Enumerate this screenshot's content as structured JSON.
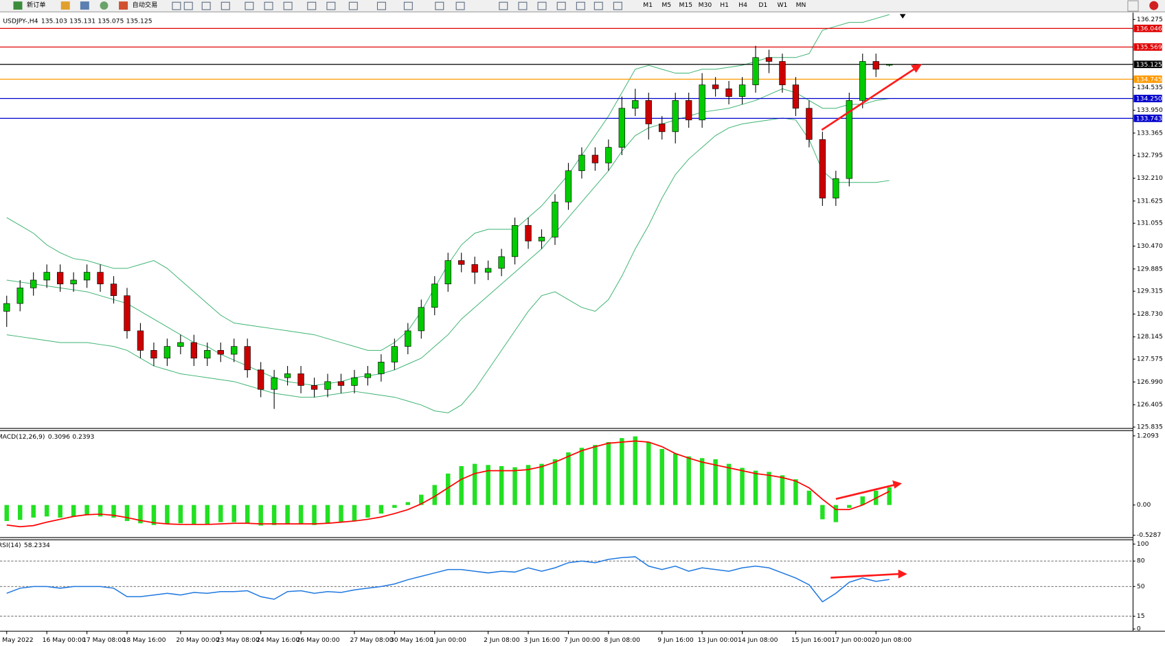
{
  "toolbar": {
    "new_order": "新订单",
    "auto_trading": "自动交易",
    "timeframes": [
      "M1",
      "M5",
      "M15",
      "M30",
      "H1",
      "H4",
      "D1",
      "W1",
      "MN"
    ]
  },
  "chart_data": [
    {
      "type": "candlestick",
      "symbol": "USDJPY-,H4",
      "categories": [
        "May 2022",
        null,
        null,
        "16 May 00:00",
        null,
        null,
        "17 May 08:00",
        null,
        null,
        "18 May 16:00",
        null,
        null,
        null,
        "20 May 00:00",
        null,
        null,
        "23 May 08:00",
        null,
        null,
        "24 May 16:00",
        null,
        null,
        "26 May 00:00",
        null,
        null,
        null,
        "27 May 08:00",
        null,
        null,
        "30 May 16:00",
        null,
        null,
        "1 Jun 00:00",
        null,
        null,
        null,
        "2 Jun 08:00",
        null,
        null,
        "3 Jun 16:00",
        null,
        null,
        "7 Jun 00:00",
        null,
        null,
        "8 Jun 08:00",
        null,
        null,
        null,
        "9 Jun 16:00",
        null,
        null,
        "13 Jun 00:00",
        null,
        null,
        "14 Jun 08:00",
        null,
        null,
        null,
        "15 Jun 16:00",
        null,
        null,
        "17 Jun 00:00",
        null,
        null,
        "20 Jun 08:00",
        null
      ],
      "open": [
        128.8,
        129.0,
        129.4,
        129.6,
        129.8,
        129.5,
        129.6,
        129.8,
        129.5,
        129.2,
        128.3,
        127.8,
        127.6,
        127.9,
        128.0,
        127.6,
        127.8,
        127.7,
        127.9,
        127.3,
        126.8,
        127.1,
        127.2,
        126.9,
        126.8,
        127.0,
        126.9,
        127.1,
        127.2,
        127.5,
        127.9,
        128.3,
        128.9,
        129.5,
        130.1,
        130.0,
        129.8,
        129.9,
        130.2,
        131.0,
        130.6,
        130.7,
        131.6,
        132.4,
        132.8,
        132.6,
        133.0,
        134.0,
        134.2,
        133.6,
        133.4,
        134.2,
        133.7,
        134.6,
        134.5,
        134.3,
        134.6,
        135.3,
        135.2,
        134.6,
        134.0,
        133.2,
        131.7,
        132.2,
        134.2,
        135.2,
        135.103
      ],
      "high": [
        129.2,
        129.6,
        129.8,
        130.0,
        130.0,
        129.8,
        130.0,
        130.0,
        129.7,
        129.4,
        128.5,
        128.0,
        128.1,
        128.2,
        128.2,
        128.0,
        128.0,
        128.1,
        128.1,
        127.5,
        127.3,
        127.4,
        127.4,
        127.1,
        127.2,
        127.2,
        127.3,
        127.4,
        127.7,
        128.1,
        128.5,
        129.1,
        129.7,
        130.3,
        130.3,
        130.2,
        130.1,
        130.4,
        131.2,
        131.2,
        130.9,
        131.8,
        132.6,
        133.0,
        133.0,
        133.2,
        134.3,
        134.5,
        134.4,
        133.8,
        134.4,
        134.4,
        134.9,
        134.8,
        134.7,
        134.8,
        135.6,
        135.5,
        135.4,
        134.8,
        134.2,
        133.4,
        132.4,
        134.4,
        135.4,
        135.4,
        135.131
      ],
      "low": [
        128.4,
        128.8,
        129.2,
        129.4,
        129.3,
        129.3,
        129.4,
        129.3,
        129.0,
        128.1,
        127.6,
        127.4,
        127.4,
        127.7,
        127.4,
        127.4,
        127.5,
        127.5,
        127.1,
        126.6,
        126.3,
        126.9,
        126.7,
        126.6,
        126.6,
        126.7,
        126.7,
        126.9,
        127.0,
        127.3,
        127.7,
        128.1,
        128.7,
        129.3,
        129.8,
        129.5,
        129.6,
        129.7,
        130.0,
        130.4,
        130.4,
        130.5,
        131.4,
        132.2,
        132.4,
        132.4,
        132.8,
        133.8,
        133.2,
        133.2,
        133.1,
        133.5,
        133.5,
        134.3,
        134.1,
        134.1,
        134.4,
        134.9,
        134.4,
        133.8,
        133.0,
        131.5,
        131.5,
        132.0,
        134.0,
        134.8,
        135.075
      ],
      "close": [
        129.0,
        129.4,
        129.6,
        129.8,
        129.5,
        129.6,
        129.8,
        129.5,
        129.2,
        128.3,
        127.8,
        127.6,
        127.9,
        128.0,
        127.6,
        127.8,
        127.7,
        127.9,
        127.3,
        126.8,
        127.1,
        127.2,
        126.9,
        126.8,
        127.0,
        126.9,
        127.1,
        127.2,
        127.5,
        127.9,
        128.3,
        128.9,
        129.5,
        130.1,
        130.0,
        129.8,
        129.9,
        130.2,
        131.0,
        130.6,
        130.7,
        131.6,
        132.4,
        132.8,
        132.6,
        133.0,
        134.0,
        134.2,
        133.6,
        133.4,
        134.2,
        133.7,
        134.6,
        134.5,
        134.3,
        134.6,
        135.3,
        135.2,
        134.6,
        134.0,
        133.2,
        131.7,
        132.2,
        134.2,
        135.2,
        135.0,
        135.125
      ],
      "up_color": "#00cc00",
      "down_color": "#cc0000",
      "bands": {
        "color": "#3cb371",
        "upper": [
          131.2,
          131.0,
          130.8,
          130.5,
          130.3,
          130.15,
          130.1,
          130.0,
          129.9,
          129.9,
          130.0,
          130.1,
          129.9,
          129.6,
          129.3,
          129.0,
          128.7,
          128.5,
          128.45,
          128.4,
          128.35,
          128.3,
          128.25,
          128.2,
          128.1,
          128.0,
          127.9,
          127.8,
          127.8,
          128.0,
          128.3,
          128.8,
          129.4,
          130.0,
          130.5,
          130.8,
          130.9,
          130.9,
          130.9,
          131.2,
          131.5,
          131.9,
          132.3,
          132.8,
          133.3,
          133.8,
          134.4,
          135.0,
          135.1,
          135.0,
          134.9,
          134.9,
          135.0,
          135.0,
          135.05,
          135.1,
          135.2,
          135.3,
          135.3,
          135.3,
          135.4,
          136.0,
          136.1,
          136.2,
          136.2,
          136.3,
          136.4
        ],
        "middle": [
          129.6,
          129.55,
          129.5,
          129.45,
          129.4,
          129.35,
          129.3,
          129.2,
          129.1,
          129.0,
          128.8,
          128.6,
          128.4,
          128.2,
          128.0,
          127.9,
          127.7,
          127.55,
          127.4,
          127.25,
          127.1,
          127.0,
          126.95,
          126.9,
          126.95,
          127.0,
          127.1,
          127.15,
          127.2,
          127.3,
          127.45,
          127.6,
          127.9,
          128.2,
          128.6,
          128.9,
          129.2,
          129.5,
          129.8,
          130.1,
          130.4,
          130.8,
          131.2,
          131.6,
          132.0,
          132.4,
          132.9,
          133.3,
          133.5,
          133.6,
          133.7,
          133.8,
          133.9,
          133.95,
          134.0,
          134.1,
          134.2,
          134.35,
          134.5,
          134.4,
          134.2,
          134.0,
          134.0,
          134.1,
          134.1,
          134.2,
          134.25
        ],
        "lower": [
          128.2,
          128.15,
          128.1,
          128.05,
          128.0,
          128.0,
          128.0,
          127.95,
          127.9,
          127.8,
          127.6,
          127.4,
          127.3,
          127.2,
          127.15,
          127.1,
          127.05,
          127.0,
          126.9,
          126.8,
          126.7,
          126.65,
          126.6,
          126.6,
          126.65,
          126.7,
          126.75,
          126.7,
          126.65,
          126.6,
          126.5,
          126.4,
          126.25,
          126.2,
          126.4,
          126.8,
          127.3,
          127.8,
          128.3,
          128.8,
          129.2,
          129.3,
          129.1,
          128.9,
          128.8,
          129.1,
          129.7,
          130.4,
          131.0,
          131.7,
          132.3,
          132.7,
          133.0,
          133.3,
          133.5,
          133.6,
          133.65,
          133.7,
          133.75,
          133.7,
          133.2,
          132.4,
          132.1,
          132.1,
          132.1,
          132.1,
          132.15
        ]
      },
      "hlines": [
        {
          "value": 136.046,
          "color": "#e00000"
        },
        {
          "value": 135.569,
          "color": "#e00000"
        },
        {
          "value": 135.125,
          "color": "#000000"
        },
        {
          "value": 134.745,
          "color": "#ff9900"
        },
        {
          "value": 134.25,
          "label": "134.250",
          "color": "#0000cc"
        },
        {
          "value": 133.743,
          "color": "#0000cc"
        }
      ],
      "ylim": [
        125.8,
        136.45
      ],
      "yticks": [
        136.275,
        134.535,
        {
          "value": 133.95,
          "label": "133.950"
        },
        133.365,
        132.795,
        {
          "value": 132.21,
          "label": "132.210"
        },
        131.625,
        131.055,
        {
          "value": 130.47,
          "label": "130.470"
        },
        129.885,
        129.315,
        {
          "value": 128.73,
          "label": "128.730"
        },
        128.145,
        127.575,
        {
          "value": 126.99,
          "label": "126.990"
        },
        126.405,
        125.835
      ]
    },
    {
      "type": "bar",
      "title": "MACD(12,26,9)",
      "color": "#22e022",
      "values": [
        -0.28,
        -0.26,
        -0.22,
        -0.2,
        -0.22,
        -0.2,
        -0.18,
        -0.2,
        -0.22,
        -0.28,
        -0.32,
        -0.35,
        -0.33,
        -0.32,
        -0.34,
        -0.33,
        -0.3,
        -0.3,
        -0.32,
        -0.36,
        -0.35,
        -0.33,
        -0.34,
        -0.35,
        -0.32,
        -0.3,
        -0.28,
        -0.22,
        -0.15,
        -0.05,
        0.05,
        0.18,
        0.35,
        0.55,
        0.68,
        0.72,
        0.7,
        0.68,
        0.66,
        0.7,
        0.72,
        0.8,
        0.92,
        1.0,
        1.05,
        1.1,
        1.17,
        1.2,
        1.1,
        0.98,
        0.9,
        0.85,
        0.82,
        0.8,
        0.72,
        0.65,
        0.6,
        0.58,
        0.52,
        0.45,
        0.25,
        -0.25,
        -0.3,
        -0.05,
        0.15,
        0.25,
        0.3096
      ],
      "signal": {
        "color": "#ff0000",
        "values": [
          -0.35,
          -0.38,
          -0.36,
          -0.3,
          -0.25,
          -0.2,
          -0.17,
          -0.16,
          -0.18,
          -0.22,
          -0.27,
          -0.31,
          -0.33,
          -0.34,
          -0.34,
          -0.34,
          -0.33,
          -0.32,
          -0.32,
          -0.33,
          -0.33,
          -0.33,
          -0.33,
          -0.33,
          -0.32,
          -0.3,
          -0.28,
          -0.25,
          -0.21,
          -0.15,
          -0.08,
          0.02,
          0.15,
          0.3,
          0.45,
          0.55,
          0.6,
          0.6,
          0.6,
          0.62,
          0.67,
          0.75,
          0.85,
          0.95,
          1.02,
          1.08,
          1.1,
          1.12,
          1.1,
          1.02,
          0.9,
          0.82,
          0.75,
          0.7,
          0.65,
          0.6,
          0.55,
          0.52,
          0.48,
          0.42,
          0.3,
          0.1,
          -0.08,
          -0.08,
          0.0,
          0.12,
          0.2393
        ]
      },
      "ylim": [
        -0.57,
        1.3
      ],
      "yticks": [
        1.2093,
        {
          "value": 0,
          "label": "0.00"
        },
        -0.5287
      ]
    },
    {
      "type": "line",
      "title": "RSI(14)",
      "color": "#1e78e0",
      "values": [
        42,
        48,
        50,
        50,
        48,
        50,
        50,
        50,
        48,
        38,
        38,
        40,
        42,
        40,
        43,
        42,
        44,
        44,
        45,
        38,
        35,
        44,
        45,
        42,
        44,
        43,
        46,
        48,
        50,
        53,
        58,
        62,
        66,
        70,
        70,
        68,
        66,
        68,
        67,
        72,
        68,
        72,
        78,
        80,
        78,
        82,
        84,
        85,
        74,
        70,
        74,
        68,
        72,
        70,
        68,
        72,
        74,
        72,
        66,
        60,
        52,
        32,
        42,
        55,
        60,
        56,
        58.2334
      ],
      "levels": [
        80,
        50,
        15
      ],
      "ylim": [
        -2.6,
        105
      ],
      "yticks": [
        100,
        80,
        50,
        15,
        0
      ]
    }
  ]
}
